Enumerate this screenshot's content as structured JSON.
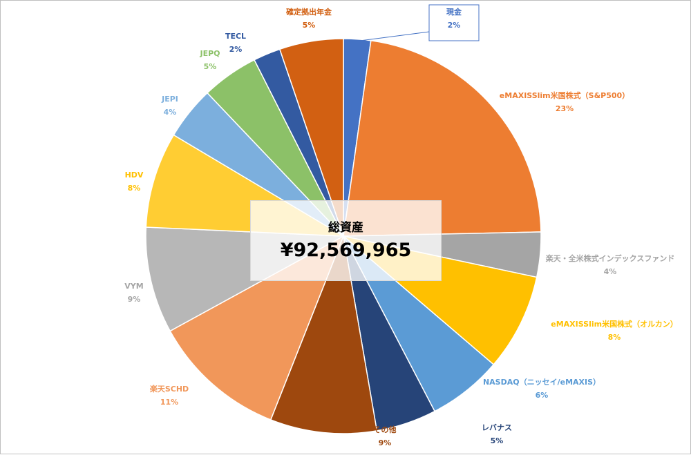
{
  "chart_data": {
    "type": "pie",
    "title": "",
    "center_label": {
      "title": "総資産",
      "value": "¥92,569,965"
    },
    "slices": [
      {
        "label": "現金",
        "value_label": "2%",
        "value": 2.3,
        "color": "#4472C4"
      },
      {
        "label": "eMAXISSlim米国株式（S&P500）",
        "value_label": "23%",
        "value": 23.2,
        "color": "#ED7D31"
      },
      {
        "label": "楽天・全米株式インデックスファンド",
        "value_label": "4%",
        "value": 3.8,
        "color": "#A5A5A5"
      },
      {
        "label": "eMAXISSlim米国株式（オルカン）",
        "value_label": "8%",
        "value": 8.2,
        "color": "#FFC000"
      },
      {
        "label": "NASDAQ（ニッセイ/eMAXIS）",
        "value_label": "6%",
        "value": 6.3,
        "color": "#5B9BD5"
      },
      {
        "label": "レバナス",
        "value_label": "5%",
        "value": 5.1,
        "color": "#264478"
      },
      {
        "label": "その他",
        "value_label": "9%",
        "value": 9.0,
        "color": "#9E480E"
      },
      {
        "label": "楽天SCHD",
        "value_label": "11%",
        "value": 11.4,
        "color": "#F1975A"
      },
      {
        "label": "VYM",
        "value_label": "9%",
        "value": 9.0,
        "color": "#B7B7B7"
      },
      {
        "label": "HDV",
        "value_label": "8%",
        "value": 8.1,
        "color": "#FFCD33"
      },
      {
        "label": "JEPI",
        "value_label": "4%",
        "value": 4.5,
        "color": "#7CAFDD"
      },
      {
        "label": "JEPQ",
        "value_label": "5%",
        "value": 4.8,
        "color": "#8CC168"
      },
      {
        "label": "TECL",
        "value_label": "2%",
        "value": 2.3,
        "color": "#335AA1"
      },
      {
        "label": "確定拠出年金",
        "value_label": "5%",
        "value": 5.4,
        "color": "#D26012"
      }
    ],
    "start_angle": "12 o'clock",
    "direction": "clockwise",
    "legend": "none"
  }
}
